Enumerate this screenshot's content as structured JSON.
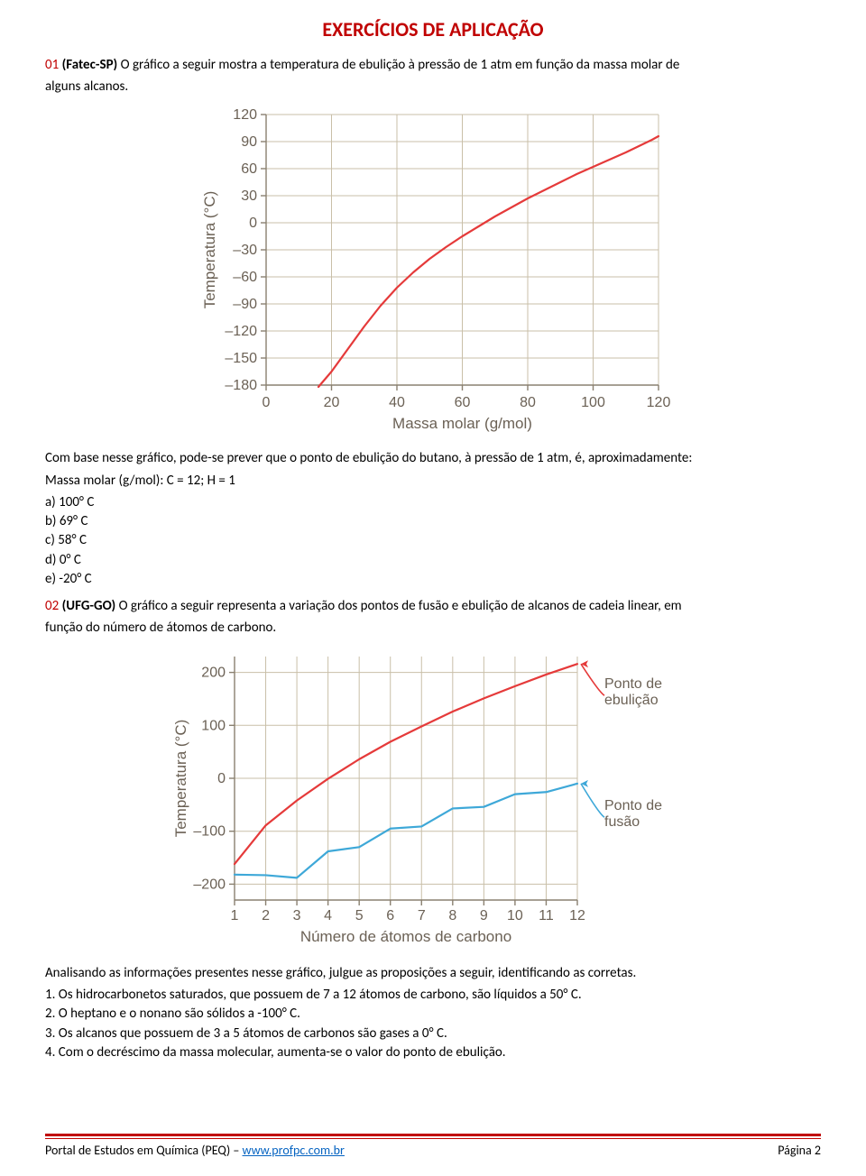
{
  "header": {
    "title": "EXERCÍCIOS DE APLICAÇÃO"
  },
  "q1": {
    "num": "01",
    "src": "(Fatec-SP)",
    "text1": "O gráfico a seguir mostra a temperatura de ebulição à pressão de 1 atm em função da massa molar de",
    "text2": "alguns alcanos.",
    "after1": "Com base nesse gráfico, pode-se prever que o ponto de ebulição do butano, à pressão de 1 atm, é, aproximadamente:",
    "after2": "Massa molar (g/mol): C = 12; H = 1",
    "options": {
      "a": "a) 100° C",
      "b": "b) 69° C",
      "c": "c) 58° C",
      "d": "d) 0° C",
      "e": "e) -20° C"
    },
    "chart": {
      "type": "line",
      "x_ticks": [
        0,
        20,
        40,
        60,
        80,
        100,
        120
      ],
      "y_ticks": [
        -180,
        -150,
        -120,
        -90,
        -60,
        -30,
        0,
        30,
        60,
        90,
        120
      ],
      "xlabel": "Massa molar (g/mol)",
      "ylabel": "Temperatura (°C)",
      "x_range": [
        0,
        120
      ],
      "y_range": [
        -180,
        120
      ],
      "points": [
        [
          16,
          -182
        ],
        [
          20,
          -165
        ],
        [
          25,
          -140
        ],
        [
          30,
          -115
        ],
        [
          35,
          -92
        ],
        [
          40,
          -72
        ],
        [
          45,
          -55
        ],
        [
          50,
          -40
        ],
        [
          55,
          -27
        ],
        [
          60,
          -15
        ],
        [
          65,
          -4
        ],
        [
          70,
          7
        ],
        [
          75,
          17
        ],
        [
          80,
          27
        ],
        [
          85,
          36
        ],
        [
          90,
          45
        ],
        [
          95,
          54
        ],
        [
          100,
          62
        ],
        [
          105,
          70
        ],
        [
          110,
          78
        ],
        [
          114,
          85
        ],
        [
          118,
          92
        ],
        [
          120,
          96
        ]
      ],
      "line_color": "#e53a3a",
      "grid_color": "#c9bfa8",
      "axis_color": "#8a8070",
      "tick_fontsize": 16,
      "label_fontsize": 17,
      "line_width": 2.2
    }
  },
  "q2": {
    "num": "02",
    "src": "(UFG-GO)",
    "text1": "O gráfico a seguir representa a variação dos pontos de fusão e ebulição de alcanos de cadeia linear, em",
    "text2": "função do número de átomos de carbono.",
    "after1": "Analisando as informações presentes nesse gráfico, julgue as proposições a seguir, identificando as corretas.",
    "props": {
      "p1": "1. Os hidrocarbonetos saturados, que possuem de 7 a 12 átomos de carbono, são líquidos a 50° C.",
      "p2": "2. O heptano e o nonano são sólidos a -100° C.",
      "p3": "3. Os alcanos que possuem de 3 a 5 átomos de carbonos são gases a 0° C.",
      "p4": "4. Com o decréscimo da massa molecular, aumenta-se o valor do ponto de ebulição."
    },
    "chart": {
      "type": "line",
      "x_ticks": [
        1,
        2,
        3,
        4,
        5,
        6,
        7,
        8,
        9,
        10,
        11,
        12
      ],
      "y_ticks": [
        -200,
        -100,
        0,
        100,
        200
      ],
      "xlabel": "Número de átomos de carbono",
      "ylabel": "Temperatura (°C)",
      "x_range": [
        1,
        12
      ],
      "y_range": [
        -230,
        230
      ],
      "series": {
        "ebulicao": {
          "label": "Ponto de\nebulição",
          "label1": "Ponto de",
          "label2": "ebulição",
          "color": "#e53a3a",
          "points": [
            [
              1,
              -162
            ],
            [
              2,
              -89
            ],
            [
              3,
              -42
            ],
            [
              4,
              -1
            ],
            [
              5,
              36
            ],
            [
              6,
              69
            ],
            [
              7,
              98
            ],
            [
              8,
              126
            ],
            [
              9,
              151
            ],
            [
              10,
              174
            ],
            [
              11,
              196
            ],
            [
              12,
              216
            ]
          ]
        },
        "fusao": {
          "label": "Ponto de\nfusão",
          "label1": "Ponto de",
          "label2": "fusão",
          "color": "#3ea8d8",
          "points": [
            [
              1,
              -182
            ],
            [
              2,
              -183
            ],
            [
              3,
              -188
            ],
            [
              4,
              -138
            ],
            [
              5,
              -130
            ],
            [
              6,
              -95
            ],
            [
              7,
              -91
            ],
            [
              8,
              -57
            ],
            [
              9,
              -54
            ],
            [
              10,
              -30
            ],
            [
              11,
              -26
            ],
            [
              12,
              -10
            ]
          ]
        }
      },
      "grid_color": "#c9bfa8",
      "axis_color": "#8a8070",
      "line_width": 2.2
    }
  },
  "footer": {
    "left_pre": "Portal de Estudos em Química (PEQ) – ",
    "link_text": "www.profpc.com.br",
    "right": "Página 2"
  }
}
